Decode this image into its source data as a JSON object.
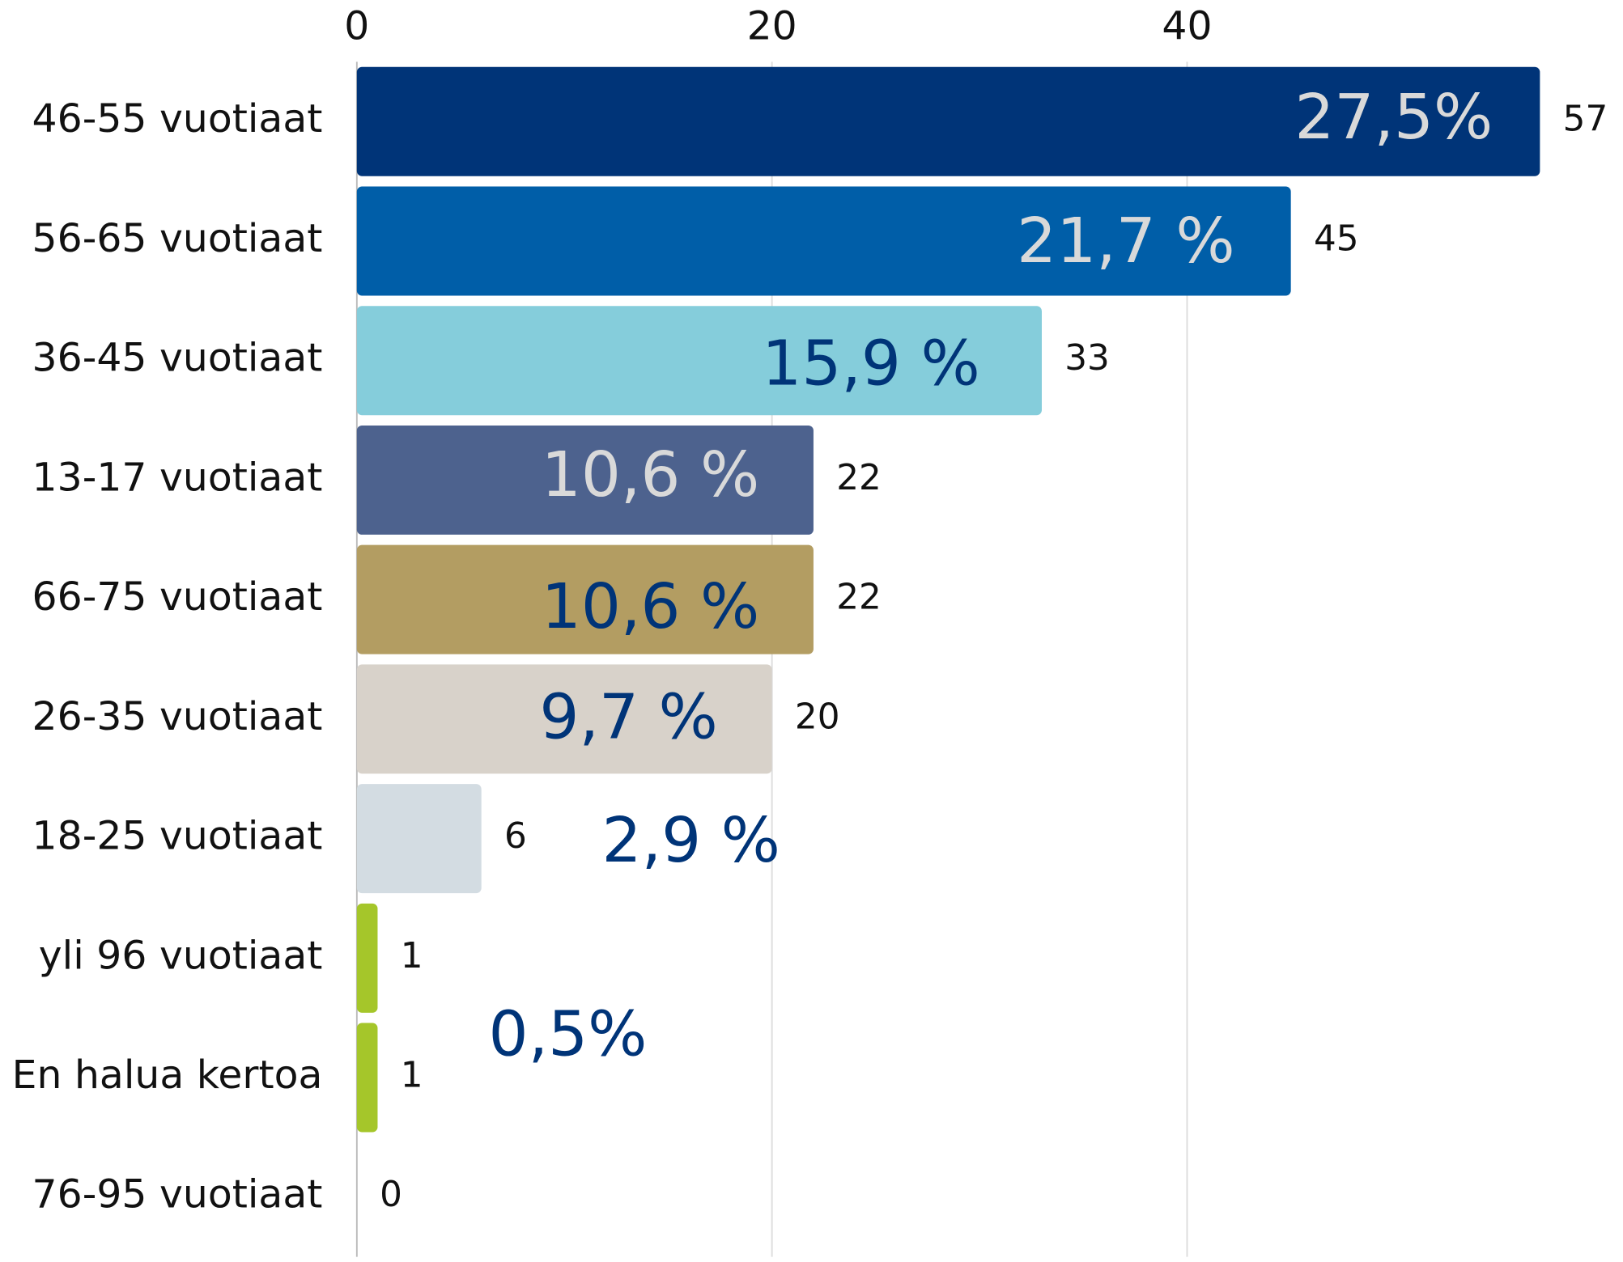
{
  "chart_data": {
    "type": "bar",
    "orientation": "horizontal",
    "categories": [
      "46-55 vuotiaat",
      "56-65 vuotiaat",
      "36-45 vuotiaat",
      "13-17 vuotiaat",
      "66-75 vuotiaat",
      "26-35 vuotiaat",
      "18-25 vuotiaat",
      "yli 96 vuotiaat",
      "En halua kertoa",
      "76-95 vuotiaat"
    ],
    "values": [
      57,
      45,
      33,
      22,
      22,
      20,
      6,
      1,
      1,
      0
    ],
    "colors": [
      "#003478",
      "#005ea8",
      "#85cddb",
      "#4d628e",
      "#b39d62",
      "#d8d2ca",
      "#d3dce2",
      "#a5c62a",
      "#a5c62a",
      "#cccccc"
    ],
    "xlim": [
      0,
      60
    ],
    "xticks": [
      0,
      20,
      40
    ],
    "grid": true,
    "annotations": [
      {
        "text": "27,5%",
        "color": "#d9d9d9"
      },
      {
        "text": "21,7 %",
        "color": "#d9d9d9"
      },
      {
        "text": "15,9 %",
        "color": "#003478"
      },
      {
        "text": "10,6 %",
        "color": "#d9d9d9"
      },
      {
        "text": "10,6 %",
        "color": "#003478"
      },
      {
        "text": "9,7 %",
        "color": "#003478"
      },
      {
        "text": "2,9 %",
        "color": "#003478"
      },
      {
        "text": "0,5%",
        "color": "#003478"
      }
    ]
  }
}
